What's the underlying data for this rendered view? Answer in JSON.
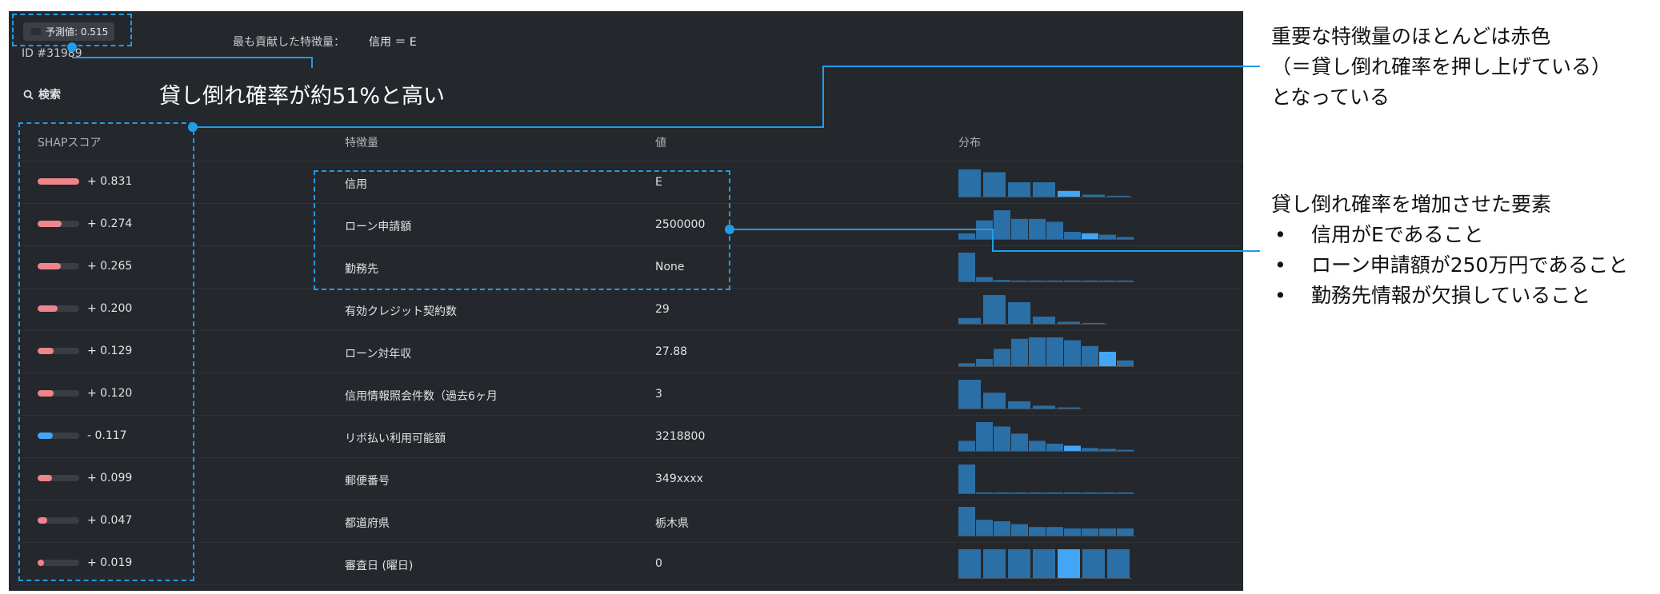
{
  "prediction": {
    "label": "予測値: 0.515"
  },
  "record_id": "ID #31989",
  "top_feature": {
    "label": "最も貢献した特徴量：",
    "value": "信用 ＝ E"
  },
  "search": {
    "icon": "search-icon",
    "label": "検索"
  },
  "headline": "貸し倒れ確率が約51%と高い",
  "table": {
    "headers": {
      "shap": "SHAPスコア",
      "feature": "特徴量",
      "value": "値",
      "dist": "分布"
    },
    "rows": [
      {
        "score": "+ 0.831",
        "magnitude": 0.831,
        "color": "#f0848b",
        "feature": "信用",
        "value": "E",
        "dist": [
          0.95,
          0.85,
          0.5,
          0.5,
          0.2,
          0.07,
          0.03
        ],
        "hl": 4
      },
      {
        "score": "+ 0.274",
        "magnitude": 0.274,
        "color": "#f0848b",
        "feature": "ローン申請額",
        "value": "2500000",
        "dist": [
          0.2,
          0.65,
          1.0,
          0.7,
          0.7,
          0.6,
          0.25,
          0.2,
          0.15,
          0.07
        ],
        "hl": 7
      },
      {
        "score": "+ 0.265",
        "magnitude": 0.265,
        "color": "#f0848b",
        "feature": "勤務先",
        "value": "None",
        "dist": [
          1.0,
          0.15,
          0.05,
          0.03,
          0.03,
          0.03,
          0.03,
          0.03,
          0.03,
          0.03
        ],
        "hl": -1
      },
      {
        "score": "+ 0.200",
        "magnitude": 0.2,
        "color": "#f0848b",
        "feature": "有効クレジット契約数",
        "value": "29",
        "dist": [
          0.2,
          1.0,
          0.75,
          0.25,
          0.07,
          0.03
        ],
        "hl": -1
      },
      {
        "score": "+ 0.129",
        "magnitude": 0.129,
        "color": "#f0848b",
        "feature": "ローン対年収",
        "value": "27.88",
        "dist": [
          0.1,
          0.25,
          0.6,
          0.95,
          1.0,
          1.0,
          0.9,
          0.7,
          0.5,
          0.2
        ],
        "hl": 8
      },
      {
        "score": "+ 0.120",
        "magnitude": 0.12,
        "color": "#f0848b",
        "feature": "信用情報照会件数（過去6ヶ月",
        "value": "3",
        "dist": [
          1.0,
          0.55,
          0.25,
          0.1,
          0.04
        ],
        "hl": -1
      },
      {
        "score": "- 0.117",
        "magnitude": 0.117,
        "color": "#42a5f5",
        "feature": "リボ払い利用可能額",
        "value": "3218800",
        "dist": [
          0.35,
          1.0,
          0.85,
          0.6,
          0.35,
          0.25,
          0.18,
          0.1,
          0.07,
          0.04
        ],
        "hl": 6
      },
      {
        "score": "+ 0.099",
        "magnitude": 0.099,
        "color": "#f0848b",
        "feature": "郵便番号",
        "value": "349xxxx",
        "dist": [
          1.0,
          0.03,
          0.03,
          0.03,
          0.03,
          0.03,
          0.03,
          0.03,
          0.03,
          0.03
        ],
        "hl": -1
      },
      {
        "score": "+ 0.047",
        "magnitude": 0.047,
        "color": "#f0848b",
        "feature": "都道府県",
        "value": "栃木県",
        "dist": [
          1.0,
          0.55,
          0.5,
          0.4,
          0.3,
          0.3,
          0.25,
          0.25,
          0.25,
          0.25
        ],
        "hl": -1
      },
      {
        "score": "+ 0.019",
        "magnitude": 0.019,
        "color": "#f0848b",
        "feature": "審査日 (曜日)",
        "value": "0",
        "dist": [
          1.0,
          1.0,
          1.0,
          1.0,
          1.0,
          1.0,
          1.0
        ],
        "hl": 4
      }
    ]
  },
  "annotations": {
    "note1": [
      "重要な特徴量のほとんどは赤色",
      "（＝貸し倒れ確率を押し上げている）",
      "となっている"
    ],
    "note2": {
      "title": "貸し倒れ確率を増加させた要素",
      "items": [
        "信用がEであること",
        "ローン申請額が250万円であること",
        "勤務先情報が欠損していること"
      ]
    }
  },
  "colors": {
    "accent": "#1f9de8",
    "positive": "#f0848b",
    "negative": "#42a5f5",
    "dist_bar": "#2a6fa6",
    "dist_highlight": "#42a5f5"
  }
}
